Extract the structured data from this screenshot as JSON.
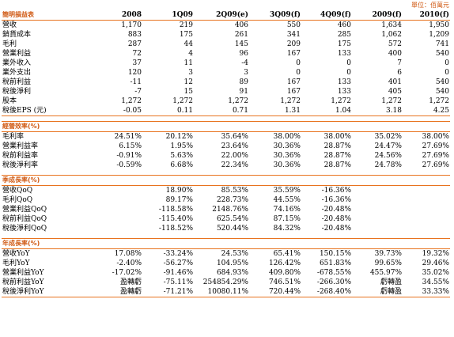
{
  "unit": "單位：佰萬元",
  "columns": [
    "2008",
    "1Q09",
    "2Q09(e)",
    "3Q09(f)",
    "4Q09(f)",
    "2009(f)",
    "2010(f)"
  ],
  "header_label": "簡明損益表",
  "income": [
    {
      "label": "營收",
      "values": [
        "1,170",
        "219",
        "406",
        "550",
        "460",
        "1,634",
        "1,950"
      ]
    },
    {
      "label": "銷貨成本",
      "values": [
        "883",
        "175",
        "261",
        "341",
        "285",
        "1,062",
        "1,209"
      ]
    },
    {
      "label": "毛利",
      "values": [
        "287",
        "44",
        "145",
        "209",
        "175",
        "572",
        "741"
      ]
    },
    {
      "label": "營業利益",
      "values": [
        "72",
        "4",
        "96",
        "167",
        "133",
        "400",
        "540"
      ]
    },
    {
      "label": "業外收入",
      "values": [
        "37",
        "11",
        "-4",
        "0",
        "0",
        "7",
        "0"
      ]
    },
    {
      "label": "業外支出",
      "values": [
        "120",
        "3",
        "3",
        "0",
        "0",
        "6",
        "0"
      ]
    },
    {
      "label": "稅前利益",
      "values": [
        "-11",
        "12",
        "89",
        "167",
        "133",
        "401",
        "540"
      ]
    },
    {
      "label": "稅後淨利",
      "values": [
        "-7",
        "15",
        "91",
        "167",
        "133",
        "405",
        "540"
      ]
    },
    {
      "label": "股本",
      "values": [
        "1,272",
        "1,272",
        "1,272",
        "1,272",
        "1,272",
        "1,272",
        "1,272"
      ]
    },
    {
      "label": "稅後EPS (元)",
      "values": [
        "-0.05",
        "0.11",
        "0.71",
        "1.31",
        "1.04",
        "3.18",
        "4.25"
      ]
    }
  ],
  "sections": [
    {
      "title": "經營效率(%)",
      "rows": [
        {
          "label": "毛利率",
          "values": [
            "24.51%",
            "20.12%",
            "35.64%",
            "38.00%",
            "38.00%",
            "35.02%",
            "38.00%"
          ]
        },
        {
          "label": "營業利益率",
          "values": [
            "6.15%",
            "1.95%",
            "23.64%",
            "30.36%",
            "28.87%",
            "24.47%",
            "27.69%"
          ]
        },
        {
          "label": "稅前利益率",
          "values": [
            "-0.91%",
            "5.63%",
            "22.00%",
            "30.36%",
            "28.87%",
            "24.56%",
            "27.69%"
          ]
        },
        {
          "label": "稅後淨利率",
          "values": [
            "-0.59%",
            "6.68%",
            "22.34%",
            "30.36%",
            "28.87%",
            "24.78%",
            "27.69%"
          ]
        }
      ]
    },
    {
      "title": "季成長率(%)",
      "rows": [
        {
          "label": "營收QoQ",
          "values": [
            "",
            "18.90%",
            "85.53%",
            "35.59%",
            "-16.36%",
            "",
            ""
          ]
        },
        {
          "label": "毛利QoQ",
          "values": [
            "",
            "89.17%",
            "228.73%",
            "44.55%",
            "-16.36%",
            "",
            ""
          ]
        },
        {
          "label": "營業利益QoQ",
          "values": [
            "",
            "-118.58%",
            "2148.76%",
            "74.16%",
            "-20.48%",
            "",
            ""
          ]
        },
        {
          "label": "稅前利益QoQ",
          "values": [
            "",
            "-115.40%",
            "625.54%",
            "87.15%",
            "-20.48%",
            "",
            ""
          ]
        },
        {
          "label": "稅後淨利QoQ",
          "values": [
            "",
            "-118.52%",
            "520.44%",
            "84.32%",
            "-20.48%",
            "",
            ""
          ]
        }
      ]
    },
    {
      "title": "年成長率(%)",
      "rows": [
        {
          "label": "營收YoY",
          "values": [
            "17.08%",
            "-33.24%",
            "24.53%",
            "65.41%",
            "150.15%",
            "39.73%",
            "19.32%"
          ]
        },
        {
          "label": "毛利YoY",
          "values": [
            "-2.40%",
            "-56.27%",
            "104.95%",
            "126.42%",
            "651.83%",
            "99.65%",
            "29.46%"
          ]
        },
        {
          "label": "營業利益YoY",
          "values": [
            "-17.02%",
            "-91.46%",
            "684.93%",
            "409.80%",
            "-678.55%",
            "455.97%",
            "35.02%"
          ]
        },
        {
          "label": "稅前利益YoY",
          "values": [
            "盈轉虧",
            "-75.11%",
            "254854.29%",
            "746.51%",
            "-266.30%",
            "虧轉盈",
            "34.55%"
          ]
        },
        {
          "label": "稅後淨利YoY",
          "values": [
            "盈轉虧",
            "-71.21%",
            "10080.11%",
            "720.44%",
            "-268.40%",
            "虧轉盈",
            "33.33%"
          ]
        }
      ]
    }
  ]
}
